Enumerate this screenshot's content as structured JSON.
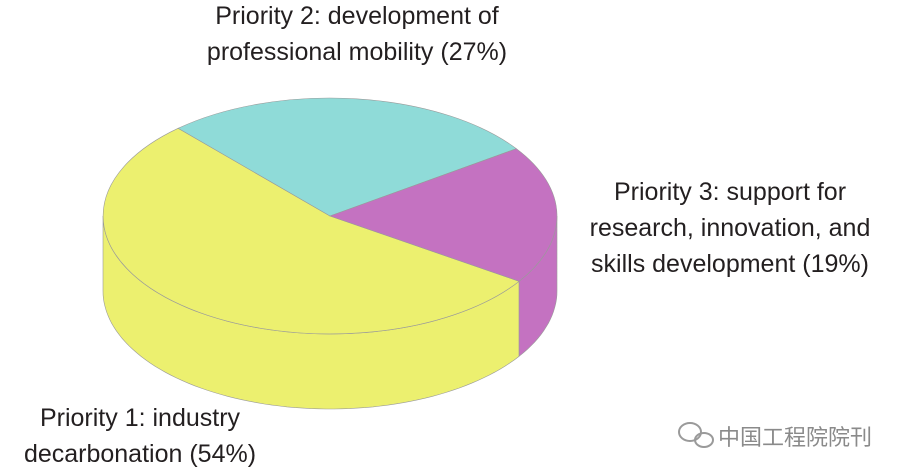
{
  "chart_data": {
    "type": "pie3d",
    "categories": [
      "Priority 1: industry decarbonation",
      "Priority 2: development of professional mobility",
      "Priority 3: support for research, innovation, and skills development"
    ],
    "values": [
      54,
      27,
      19
    ],
    "value_labels": [
      "(54%)",
      "(27%)",
      "(19%)"
    ],
    "colors": [
      "#ecf06f",
      "#8fdbd8",
      "#c472c1"
    ]
  },
  "watermark": "中国工程院院刊"
}
